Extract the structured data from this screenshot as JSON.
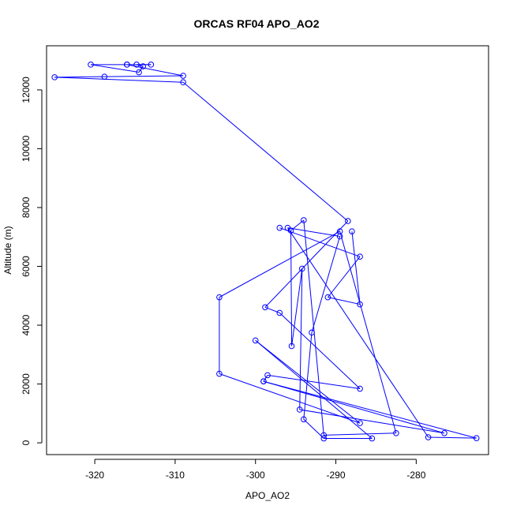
{
  "chart_data": {
    "type": "line",
    "title": "ORCAS RF04 APO_AO2",
    "xlabel": "APO_AO2",
    "ylabel": "Altitude (m)",
    "xlim": [
      -326,
      -271
    ],
    "ylim": [
      -400,
      13500
    ],
    "xticks": [
      -320,
      -310,
      -300,
      -290,
      -280
    ],
    "yticks": [
      0,
      2000,
      4000,
      6000,
      8000,
      10000,
      12000
    ],
    "grid": false,
    "series_color": "#0000ff",
    "points": [
      {
        "x": -316.0,
        "y": 12860
      },
      {
        "x": -320.5,
        "y": 12860
      },
      {
        "x": -314.5,
        "y": 12600
      },
      {
        "x": -314.0,
        "y": 12800
      },
      {
        "x": -314.8,
        "y": 12860
      },
      {
        "x": -313.0,
        "y": 12860
      },
      {
        "x": -316.0,
        "y": 12860
      },
      {
        "x": -309.0,
        "y": 12480
      },
      {
        "x": -318.8,
        "y": 12450
      },
      {
        "x": -325.0,
        "y": 12430
      },
      {
        "x": -309.0,
        "y": 12260
      },
      {
        "x": -288.5,
        "y": 7540
      },
      {
        "x": -298.8,
        "y": 4610
      },
      {
        "x": -297.0,
        "y": 4420
      },
      {
        "x": -287.0,
        "y": 1840
      },
      {
        "x": -298.5,
        "y": 2300
      },
      {
        "x": -299.0,
        "y": 2090
      },
      {
        "x": -276.5,
        "y": 330
      },
      {
        "x": -294.5,
        "y": 1130
      },
      {
        "x": -294.2,
        "y": 5920
      },
      {
        "x": -295.5,
        "y": 3290
      },
      {
        "x": -295.6,
        "y": 7220
      },
      {
        "x": -294.0,
        "y": 7570
      },
      {
        "x": -291.5,
        "y": 260
      },
      {
        "x": -282.5,
        "y": 330
      },
      {
        "x": -289.5,
        "y": 7190
      },
      {
        "x": -304.5,
        "y": 4950
      },
      {
        "x": -304.5,
        "y": 2350
      },
      {
        "x": -287.0,
        "y": 670
      },
      {
        "x": -300.0,
        "y": 3480
      },
      {
        "x": -285.5,
        "y": 150
      },
      {
        "x": -291.5,
        "y": 150
      },
      {
        "x": -294.0,
        "y": 800
      },
      {
        "x": -293.0,
        "y": 3750
      },
      {
        "x": -289.5,
        "y": 7020
      },
      {
        "x": -296.0,
        "y": 7310
      },
      {
        "x": -278.5,
        "y": 190
      },
      {
        "x": -272.5,
        "y": 160
      },
      {
        "x": -299.0,
        "y": 2090
      }
    ],
    "series_chain": [
      {
        "x": -297.0,
        "y": 7310
      },
      {
        "x": -287.0,
        "y": 6330
      },
      {
        "x": -291.0,
        "y": 4950
      },
      {
        "x": -287.0,
        "y": 4710
      },
      {
        "x": -288.0,
        "y": 7190
      }
    ]
  }
}
